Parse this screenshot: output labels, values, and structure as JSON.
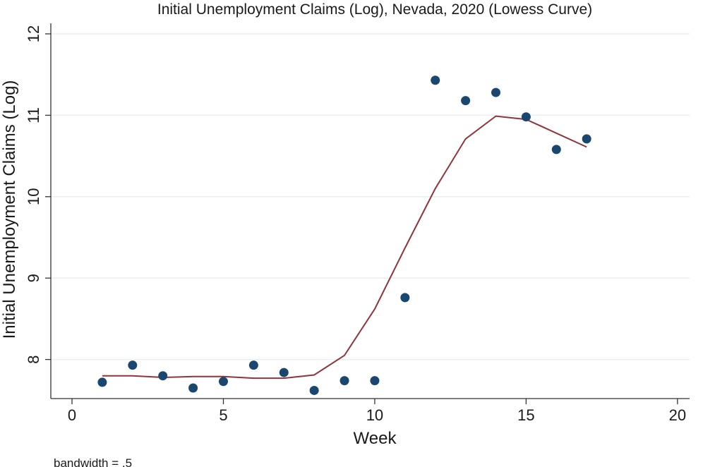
{
  "chart_data": {
    "type": "scatter",
    "title": "Initial Unemployment Claims (Log), Nevada, 2020 (Lowess Curve)",
    "xlabel": "Week",
    "ylabel": "Initial Unemployment Claims (Log)",
    "note": "bandwidth = .5",
    "xlim": [
      -0.7,
      20.4
    ],
    "ylim": [
      7.52,
      12.13
    ],
    "xticks": [
      0,
      5,
      10,
      15,
      20
    ],
    "yticks": [
      8,
      9,
      10,
      11,
      12
    ],
    "grid": true,
    "colors": {
      "points": "#1a476f",
      "curve": "#90353b",
      "grid": "#e8eef2"
    },
    "points": [
      {
        "x": 1,
        "y": 7.72
      },
      {
        "x": 2,
        "y": 7.93
      },
      {
        "x": 3,
        "y": 7.8
      },
      {
        "x": 4,
        "y": 7.65
      },
      {
        "x": 5,
        "y": 7.73
      },
      {
        "x": 6,
        "y": 7.93
      },
      {
        "x": 7,
        "y": 7.84
      },
      {
        "x": 8,
        "y": 7.62
      },
      {
        "x": 9,
        "y": 7.74
      },
      {
        "x": 10,
        "y": 7.74
      },
      {
        "x": 11,
        "y": 8.76
      },
      {
        "x": 12,
        "y": 11.43
      },
      {
        "x": 13,
        "y": 11.18
      },
      {
        "x": 14,
        "y": 11.28
      },
      {
        "x": 15,
        "y": 10.98
      },
      {
        "x": 16,
        "y": 10.58
      },
      {
        "x": 17,
        "y": 10.71
      }
    ],
    "curve": [
      {
        "x": 1,
        "y": 7.8
      },
      {
        "x": 2,
        "y": 7.8
      },
      {
        "x": 3,
        "y": 7.78
      },
      {
        "x": 4,
        "y": 7.79
      },
      {
        "x": 5,
        "y": 7.79
      },
      {
        "x": 6,
        "y": 7.77
      },
      {
        "x": 7,
        "y": 7.77
      },
      {
        "x": 8,
        "y": 7.81
      },
      {
        "x": 9,
        "y": 8.05
      },
      {
        "x": 10,
        "y": 8.62
      },
      {
        "x": 11,
        "y": 9.37
      },
      {
        "x": 12,
        "y": 10.1
      },
      {
        "x": 13,
        "y": 10.71
      },
      {
        "x": 14,
        "y": 10.99
      },
      {
        "x": 15,
        "y": 10.95
      },
      {
        "x": 16,
        "y": 10.78
      },
      {
        "x": 17,
        "y": 10.61
      }
    ]
  }
}
